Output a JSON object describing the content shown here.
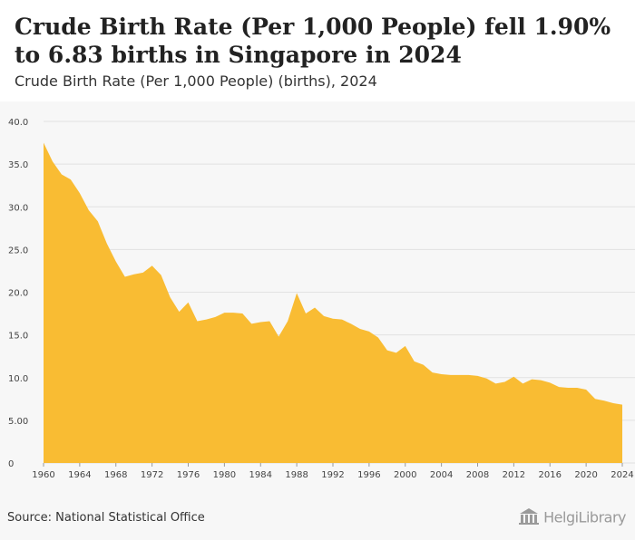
{
  "header": {
    "title": "Crude Birth Rate (Per 1,000 People) fell 1.90% to 6.83 births in Singapore in 2024",
    "subtitle": "Crude Birth Rate (Per 1,000 People) (births), 2024"
  },
  "footer": {
    "source": "Source: National Statistical Office",
    "logo": "HelgiLibrary"
  },
  "colors": {
    "fill": "#f9bc33",
    "grid": "#e2e2e2",
    "background": "#f7f7f7"
  },
  "chart_data": {
    "type": "area",
    "title": "",
    "xlabel": "",
    "ylabel": "",
    "ylim": [
      0,
      40
    ],
    "yticks": [
      0,
      5,
      10,
      15,
      20,
      25,
      30,
      35,
      40
    ],
    "ytick_labels": [
      "0",
      "5.00",
      "10.0",
      "15.0",
      "20.0",
      "25.0",
      "30.0",
      "35.0",
      "40.0"
    ],
    "xticks": [
      1960,
      1964,
      1968,
      1972,
      1976,
      1980,
      1984,
      1988,
      1992,
      1996,
      2000,
      2004,
      2008,
      2012,
      2016,
      2020,
      2024
    ],
    "grid": true,
    "legend": "none",
    "x": [
      1960,
      1961,
      1962,
      1963,
      1964,
      1965,
      1966,
      1967,
      1968,
      1969,
      1970,
      1971,
      1972,
      1973,
      1974,
      1975,
      1976,
      1977,
      1978,
      1979,
      1980,
      1981,
      1982,
      1983,
      1984,
      1985,
      1986,
      1987,
      1988,
      1989,
      1990,
      1991,
      1992,
      1993,
      1994,
      1995,
      1996,
      1997,
      1998,
      1999,
      2000,
      2001,
      2002,
      2003,
      2004,
      2005,
      2006,
      2007,
      2008,
      2009,
      2010,
      2011,
      2012,
      2013,
      2014,
      2015,
      2016,
      2017,
      2018,
      2019,
      2020,
      2021,
      2022,
      2023,
      2024
    ],
    "series": [
      {
        "values": [
          37.5,
          35.3,
          33.8,
          33.2,
          31.6,
          29.6,
          28.3,
          25.7,
          23.6,
          21.8,
          22.1,
          22.3,
          23.1,
          22.0,
          19.4,
          17.7,
          18.8,
          16.6,
          16.8,
          17.1,
          17.6,
          17.6,
          17.5,
          16.3,
          16.5,
          16.6,
          14.8,
          16.6,
          19.9,
          17.5,
          18.2,
          17.2,
          16.9,
          16.8,
          16.3,
          15.7,
          15.4,
          14.7,
          13.2,
          12.9,
          13.7,
          11.9,
          11.5,
          10.6,
          10.4,
          10.3,
          10.3,
          10.3,
          10.2,
          9.9,
          9.3,
          9.5,
          10.1,
          9.3,
          9.8,
          9.7,
          9.4,
          8.9,
          8.8,
          8.8,
          8.6,
          7.5,
          7.3,
          7.0,
          6.83
        ]
      }
    ]
  }
}
